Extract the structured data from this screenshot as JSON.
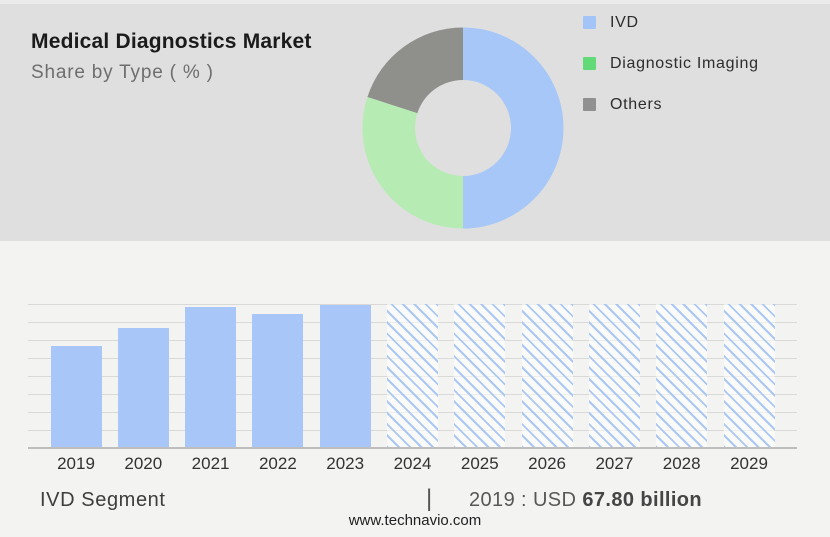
{
  "header": {
    "title": "Medical Diagnostics Market",
    "subtitle": "Share by Type ( % )"
  },
  "legend": {
    "items": [
      {
        "label": "IVD",
        "color": "#a3c4f7"
      },
      {
        "label": "Diagnostic Imaging",
        "color": "#62da77"
      },
      {
        "label": "Others",
        "color": "#909090"
      }
    ]
  },
  "footer": {
    "segment_label": "IVD Segment",
    "separator": "|",
    "value_prefix": "2019 : USD ",
    "value_bold": "67.80 billion",
    "website": "www.technavio.com"
  },
  "chart_data": [
    {
      "type": "pie",
      "variant": "donut",
      "title": "Medical Diagnostics Market — Share by Type ( % )",
      "labels": [
        "IVD",
        "Diagnostic Imaging",
        "Others"
      ],
      "values": [
        50,
        30,
        20
      ],
      "colors": [
        "#a6c7f8",
        "#b6ecb3",
        "#8f8f8c"
      ],
      "start_angle_deg": 0,
      "direction": "clockwise",
      "legend_position": "right"
    },
    {
      "type": "bar",
      "title": "IVD Segment market size by year",
      "categories": [
        "2019",
        "2020",
        "2021",
        "2022",
        "2023",
        "2024",
        "2025",
        "2026",
        "2027",
        "2028",
        "2029"
      ],
      "series": [
        {
          "name": "IVD segment",
          "height_pct_of_plot": [
            70.8,
            83.3,
            97.9,
            93.1,
            99.3,
            100,
            100,
            100,
            100,
            100,
            100
          ],
          "estimated_values_usd_billion": [
            67.8,
            79.8,
            93.7,
            89.1,
            95.1,
            null,
            null,
            null,
            null,
            null,
            null
          ]
        }
      ],
      "known_values": {
        "2019": "USD 67.80 billion"
      },
      "solid_categories": [
        "2019",
        "2020",
        "2021",
        "2022",
        "2023"
      ],
      "hatched_forecast_categories": [
        "2024",
        "2025",
        "2026",
        "2027",
        "2028",
        "2029"
      ],
      "bar_color": "#a9c6f8",
      "hatch_line_color": "#abc8f4",
      "gridline_count": 9,
      "grid": true,
      "y_axis_labels_shown": false
    }
  ]
}
